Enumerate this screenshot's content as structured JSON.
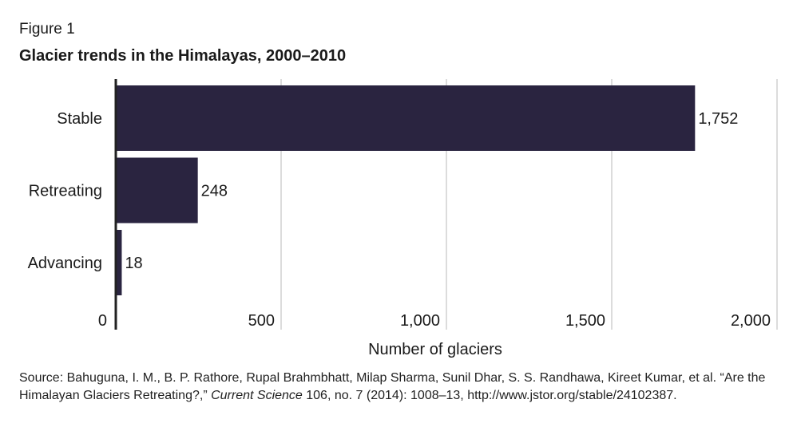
{
  "figure_label": "Figure 1",
  "chart_data": {
    "type": "bar",
    "orientation": "horizontal",
    "title": "Glacier trends in the Himalayas, 2000–2010",
    "categories": [
      "Stable",
      "Retreating",
      "Advancing"
    ],
    "values": [
      1752,
      248,
      18
    ],
    "data_labels": [
      "1,752",
      "248",
      "18"
    ],
    "xlabel": "Number of glaciers",
    "ylabel": "",
    "xlim": [
      0,
      2000
    ],
    "xticks": [
      0,
      500,
      1000,
      1500,
      2000
    ],
    "xtick_labels": [
      "0",
      "500",
      "1,000",
      "1,500",
      "2,000"
    ],
    "grid": true,
    "bar_color": "#2a2440"
  },
  "source": {
    "before_italic": "Source: Bahuguna, I. M., B. P. Rathore, Rupal Brahmbhatt, Milap Sharma, Sunil Dhar, S. S. Randhawa, Kireet Kumar, et al. “Are the Himalayan Glaciers Retreating?,” ",
    "italic": "Current Science",
    "after_italic": " 106, no. 7 (2014): 1008–13, http://www.jstor.org/stable/24102387."
  }
}
